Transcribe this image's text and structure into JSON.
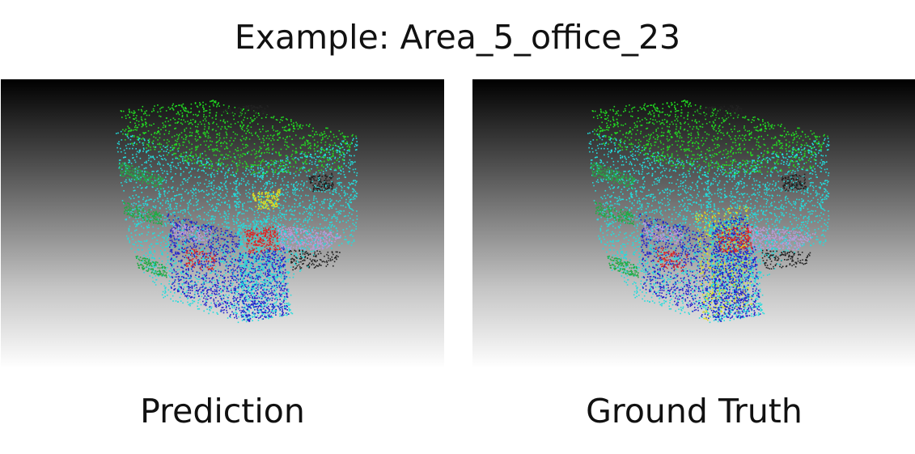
{
  "figure": {
    "title": "Example: Area_5_office_23",
    "panels": [
      {
        "caption": "Prediction",
        "image": "3d-point-cloud-office-scene-prediction"
      },
      {
        "caption": "Ground Truth",
        "image": "3d-point-cloud-office-scene-ground-truth"
      }
    ]
  },
  "colors": {
    "ceiling": "#22dd22",
    "wall": "#22dddd",
    "floor": "#2222cc",
    "door": "#dddd22",
    "chair": "#dd2222",
    "board": "#b89ad8",
    "clutter": "#222222",
    "bookcase": "#22aa44"
  }
}
